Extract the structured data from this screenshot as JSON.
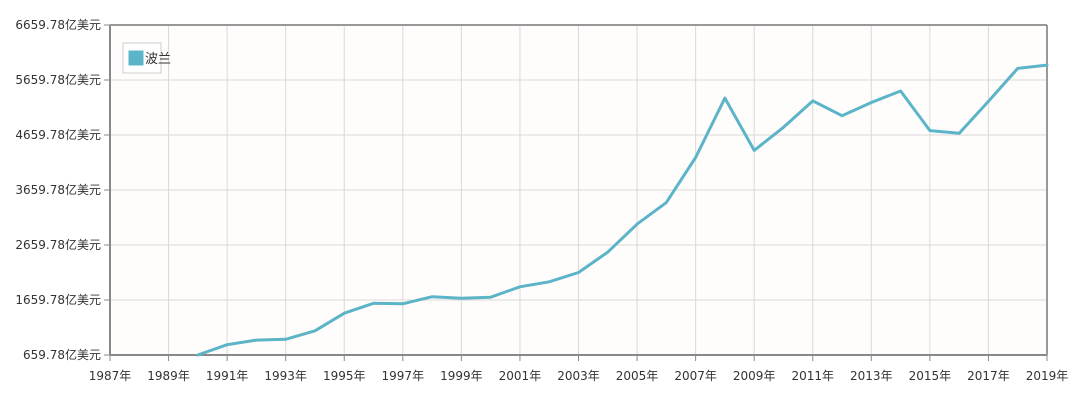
{
  "chart_data": {
    "type": "line",
    "title": "",
    "xlabel": "",
    "ylabel": "",
    "x": [
      1987,
      1988,
      1989,
      1990,
      1991,
      1992,
      1993,
      1994,
      1995,
      1996,
      1997,
      1998,
      1999,
      2000,
      2001,
      2002,
      2003,
      2004,
      2005,
      2006,
      2007,
      2008,
      2009,
      2010,
      2011,
      2012,
      2013,
      2014,
      2015,
      2016,
      2017,
      2018,
      2019
    ],
    "xlim": [
      1987,
      2019
    ],
    "ylim": [
      659.78,
      6659.78
    ],
    "grid": true,
    "legend_position": "top-left",
    "y_ticks": [
      "659.78亿美元",
      "1659.78亿美元",
      "2659.78亿美元",
      "3659.78亿美元",
      "4659.78亿美元",
      "5659.78亿美元",
      "6659.78亿美元"
    ],
    "x_ticks": [
      "1987年",
      "1989年",
      "1991年",
      "1993年",
      "1995年",
      "1997年",
      "1999年",
      "2001年",
      "2003年",
      "2005年",
      "2007年",
      "2009年",
      "2011年",
      "2013年",
      "2015年",
      "2017年",
      "2019年"
    ],
    "series": [
      {
        "name": "波兰",
        "color": "#5cb4c8",
        "values": [
          null,
          null,
          null,
          659.78,
          847,
          930,
          945,
          1100,
          1420,
          1600,
          1590,
          1720,
          1690,
          1710,
          1900,
          1990,
          2160,
          2530,
          3040,
          3430,
          4250,
          5330,
          4380,
          4800,
          5280,
          5010,
          5250,
          5460,
          4740,
          4690,
          5270,
          5870,
          5930
        ]
      }
    ]
  }
}
